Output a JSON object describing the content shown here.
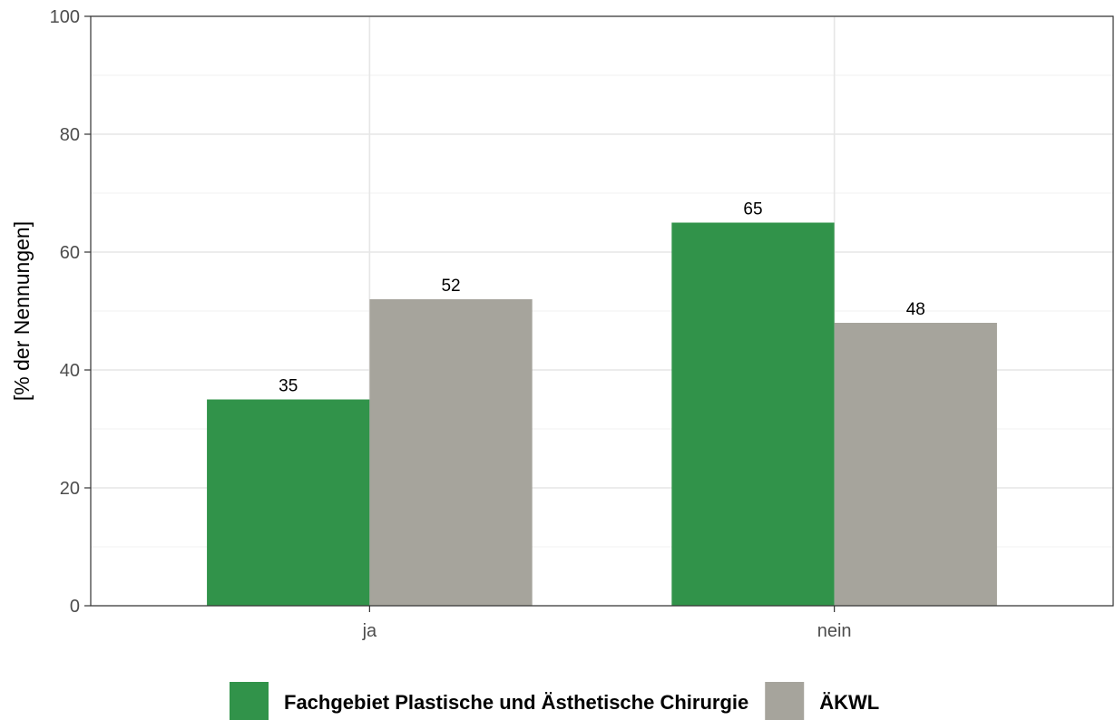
{
  "chart_data": {
    "type": "bar",
    "categories": [
      "ja",
      "nein"
    ],
    "series": [
      {
        "name": "Fachgebiet Plastische und Ästhetische Chirurgie",
        "values": [
          35,
          65
        ],
        "color": "#31934a"
      },
      {
        "name": "ÄKWL",
        "values": [
          52,
          48
        ],
        "color": "#a6a49c"
      }
    ],
    "title": "",
    "xlabel": "",
    "ylabel": "[% der Nennungen]",
    "ylim": [
      0,
      100
    ],
    "yticks": [
      0,
      20,
      40,
      60,
      80,
      100
    ],
    "grid": true,
    "legend": "bottom"
  }
}
